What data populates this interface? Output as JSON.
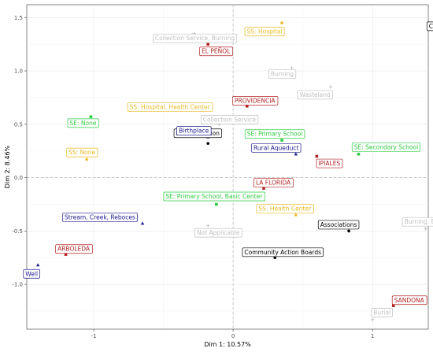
{
  "chart_data": {
    "type": "scatter",
    "xlabel": "Dim 1: 10.57%",
    "ylabel": "Dim 2: 8.46%",
    "xlim": [
      -1.48,
      1.4
    ],
    "ylim": [
      -1.42,
      1.62
    ],
    "x_ticks": [
      -1,
      0,
      1
    ],
    "y_ticks": [
      -1.0,
      -0.5,
      0.0,
      0.5,
      1.0,
      1.5
    ],
    "x_tick_labels": [
      "-1",
      "0",
      "1"
    ],
    "y_tick_labels": [
      "-1.0",
      "-0.5",
      "0.0",
      "0.5",
      "1.0",
      "1.5"
    ],
    "grid": true,
    "reference_lines": [
      {
        "axis": "x",
        "value": 0
      },
      {
        "axis": "y",
        "value": 0
      }
    ],
    "points": [
      {
        "label": "Councils",
        "x": 1.55,
        "y": 1.5,
        "color": "#000000",
        "shape": "circle"
      },
      {
        "label": "No Association",
        "x": -0.18,
        "y": 0.32,
        "color": "#000000",
        "shape": "circle"
      },
      {
        "label": "Associations",
        "x": 0.83,
        "y": -0.5,
        "color": "#000000",
        "shape": "circle"
      },
      {
        "label": "Community Action Boards",
        "x": 0.3,
        "y": -0.75,
        "color": "#000000",
        "shape": "circle"
      },
      {
        "label": "EL PEÑOL",
        "x": -0.18,
        "y": 1.25,
        "color": "#b22222",
        "shape": "square"
      },
      {
        "label": "PROVIDENCIA",
        "x": 0.1,
        "y": 0.67,
        "color": "#b22222",
        "shape": "square"
      },
      {
        "label": "IPIALES",
        "x": 0.6,
        "y": 0.2,
        "color": "#b22222",
        "shape": "square"
      },
      {
        "label": "LA FLORIDA",
        "x": 0.22,
        "y": -0.1,
        "color": "#b22222",
        "shape": "square"
      },
      {
        "label": "ARBOLEDA",
        "x": -1.2,
        "y": -0.72,
        "color": "#b22222",
        "shape": "square"
      },
      {
        "label": "SANDONA",
        "x": 1.15,
        "y": -1.2,
        "color": "#b22222",
        "shape": "square"
      },
      {
        "label": "Collection Service, Burning",
        "x": -0.28,
        "y": 1.35,
        "color": "#c0c0c0",
        "shape": "plus"
      },
      {
        "label": "Burning",
        "x": 0.42,
        "y": 1.03,
        "color": "#c0c0c0",
        "shape": "plus"
      },
      {
        "label": "Wasteland",
        "x": 0.7,
        "y": 0.85,
        "color": "#c0c0c0",
        "shape": "plus"
      },
      {
        "label": "Collection Service",
        "x": -0.1,
        "y": 0.5,
        "color": "#c0c0c0",
        "shape": "plus"
      },
      {
        "label": "Not Applicable",
        "x": -0.18,
        "y": -0.45,
        "color": "#c0c0c0",
        "shape": "plus"
      },
      {
        "label": "Burning, Burial",
        "x": 1.38,
        "y": -0.48,
        "color": "#c0c0c0",
        "shape": "plus"
      },
      {
        "label": "Burial",
        "x": 1.0,
        "y": -1.33,
        "color": "#c0c0c0",
        "shape": "plus"
      },
      {
        "label": "SS: Hospital",
        "x": 0.35,
        "y": 1.45,
        "color": "#e8b923",
        "shape": "star"
      },
      {
        "label": "SS: Hospital, Health Center",
        "x": -0.2,
        "y": 0.53,
        "color": "#e8b923",
        "shape": "star"
      },
      {
        "label": "SS: None",
        "x": -1.05,
        "y": 0.17,
        "color": "#e8b923",
        "shape": "star"
      },
      {
        "label": "SS: Health Center",
        "x": 0.45,
        "y": -0.35,
        "color": "#e8b923",
        "shape": "star"
      },
      {
        "label": "SE: None",
        "x": -1.02,
        "y": 0.57,
        "color": "#2ecc40",
        "shape": "square"
      },
      {
        "label": "SE: Primary School",
        "x": 0.35,
        "y": 0.35,
        "color": "#2ecc40",
        "shape": "square"
      },
      {
        "label": "SE: Secondary School",
        "x": 0.9,
        "y": 0.22,
        "color": "#2ecc40",
        "shape": "square"
      },
      {
        "label": "SE: Primary School, Basic Center",
        "x": -0.12,
        "y": -0.25,
        "color": "#2ecc40",
        "shape": "square"
      },
      {
        "label": "Birthplace",
        "x": -0.18,
        "y": 0.38,
        "color": "#1a1a8c",
        "shape": "triangle"
      },
      {
        "label": "Rural Aqueduct",
        "x": 0.45,
        "y": 0.22,
        "color": "#1a1a8c",
        "shape": "triangle"
      },
      {
        "label": "Stream, Creek, Reboces",
        "x": -0.65,
        "y": -0.43,
        "color": "#1a1a8c",
        "shape": "triangle"
      },
      {
        "label": "Well",
        "x": -1.4,
        "y": -0.82,
        "color": "#1a1a8c",
        "shape": "triangle"
      }
    ]
  }
}
